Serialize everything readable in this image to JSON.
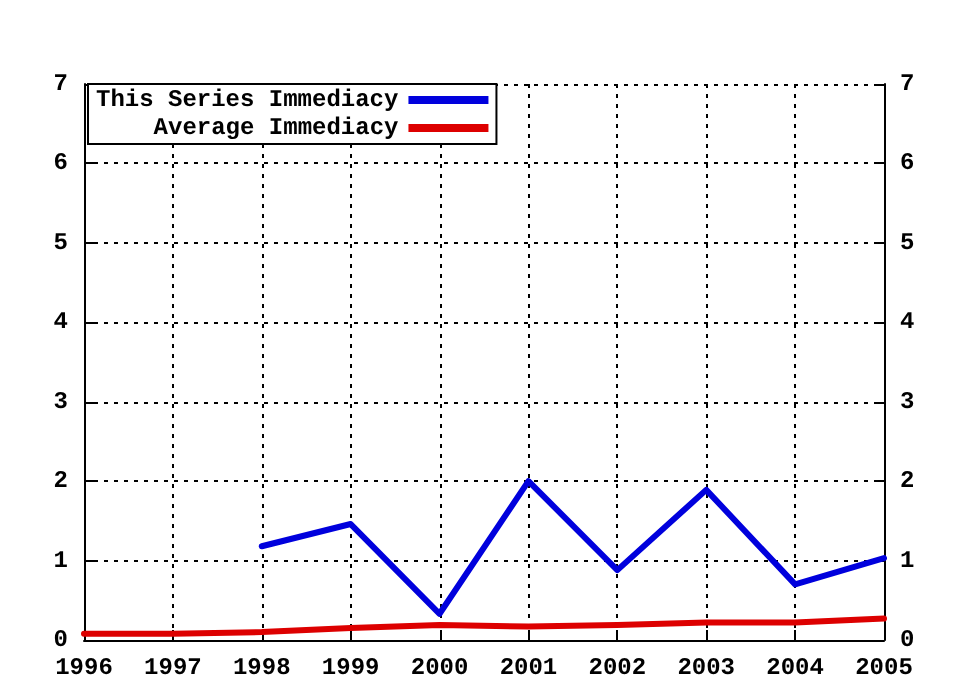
{
  "chart_data": {
    "type": "line",
    "x": [
      1996,
      1997,
      1998,
      1999,
      2000,
      2001,
      2002,
      2003,
      2004,
      2005
    ],
    "series": [
      {
        "name": "This Series Immediacy",
        "color": "#0000dd",
        "values": [
          null,
          null,
          1.18,
          1.46,
          0.33,
          2.0,
          0.88,
          1.89,
          0.7,
          1.03
        ]
      },
      {
        "name": "Average Immediacy",
        "color": "#dd0000",
        "values": [
          0.08,
          0.08,
          0.1,
          0.15,
          0.19,
          0.17,
          0.19,
          0.22,
          0.22,
          0.27
        ]
      }
    ],
    "xlim": [
      1996,
      2005
    ],
    "xticks": [
      1996,
      1997,
      1998,
      1999,
      2000,
      2001,
      2002,
      2003,
      2004,
      2005
    ],
    "ylim": [
      0,
      7
    ],
    "yticks": [
      0,
      1,
      2,
      3,
      4,
      5,
      6,
      7
    ],
    "y2lim": [
      0,
      7
    ],
    "y2ticks": [
      0,
      1,
      2,
      3,
      4,
      5,
      6,
      7
    ],
    "grid": true,
    "legend": "top left",
    "marker": "none",
    "line_style": "solid"
  }
}
